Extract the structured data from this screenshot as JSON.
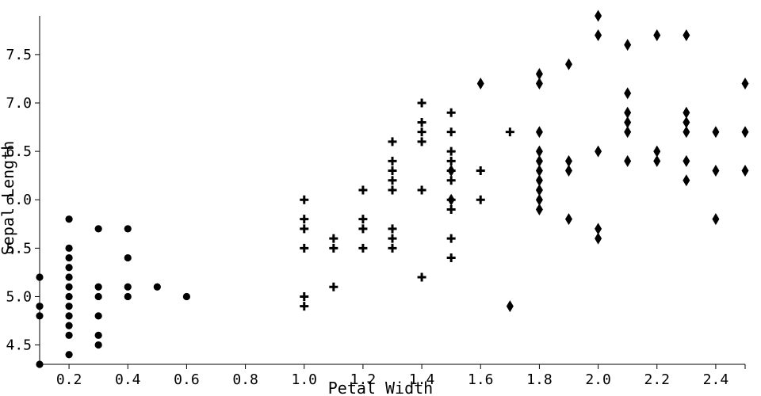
{
  "chart_data": {
    "type": "scatter",
    "xlabel": "Petal Width",
    "ylabel": "Sepal Length",
    "xlim": [
      0.1,
      2.5
    ],
    "ylim": [
      4.3,
      7.9
    ],
    "xticks": [
      0.2,
      0.4,
      0.6,
      0.8,
      1.0,
      1.2,
      1.4,
      1.6,
      1.8,
      2.0,
      2.2,
      2.4
    ],
    "xtick_labels": [
      "0.2",
      "0.4",
      "0.6",
      "0.8",
      "1.0",
      "1.2",
      "1.4",
      "1.6",
      "1.8",
      "2.0",
      "2.2",
      "2.4"
    ],
    "yticks": [
      4.5,
      5.0,
      5.5,
      6.0,
      6.5,
      7.0,
      7.5
    ],
    "ytick_labels": [
      "4.5",
      "5.0",
      "5.5",
      "6.0",
      "6.5",
      "7.0",
      "7.5"
    ],
    "grid": false,
    "marker_color": "#000000",
    "series": [
      {
        "marker": "circle",
        "points": [
          [
            0.1,
            5.2
          ],
          [
            0.1,
            4.9
          ],
          [
            0.1,
            4.8
          ],
          [
            0.1,
            4.3
          ],
          [
            0.2,
            5.8
          ],
          [
            0.2,
            5.5
          ],
          [
            0.2,
            5.4
          ],
          [
            0.2,
            5.3
          ],
          [
            0.2,
            5.2
          ],
          [
            0.2,
            5.1
          ],
          [
            0.2,
            5.0
          ],
          [
            0.2,
            4.9
          ],
          [
            0.2,
            4.8
          ],
          [
            0.2,
            4.7
          ],
          [
            0.2,
            4.6
          ],
          [
            0.2,
            4.4
          ],
          [
            0.3,
            5.7
          ],
          [
            0.3,
            5.1
          ],
          [
            0.3,
            5.0
          ],
          [
            0.3,
            4.8
          ],
          [
            0.3,
            4.6
          ],
          [
            0.3,
            4.5
          ],
          [
            0.4,
            5.7
          ],
          [
            0.4,
            5.4
          ],
          [
            0.4,
            5.1
          ],
          [
            0.4,
            5.0
          ],
          [
            0.5,
            5.1
          ],
          [
            0.6,
            5.0
          ]
        ]
      },
      {
        "marker": "plus",
        "points": [
          [
            1.0,
            6.0
          ],
          [
            1.0,
            5.8
          ],
          [
            1.0,
            5.7
          ],
          [
            1.0,
            5.5
          ],
          [
            1.0,
            5.0
          ],
          [
            1.0,
            4.9
          ],
          [
            1.1,
            5.6
          ],
          [
            1.1,
            5.5
          ],
          [
            1.1,
            5.1
          ],
          [
            1.2,
            6.1
          ],
          [
            1.2,
            5.8
          ],
          [
            1.2,
            5.7
          ],
          [
            1.2,
            5.5
          ],
          [
            1.3,
            6.6
          ],
          [
            1.3,
            6.4
          ],
          [
            1.3,
            6.3
          ],
          [
            1.3,
            6.2
          ],
          [
            1.3,
            6.1
          ],
          [
            1.3,
            5.7
          ],
          [
            1.3,
            5.6
          ],
          [
            1.3,
            5.5
          ],
          [
            1.4,
            7.0
          ],
          [
            1.4,
            6.8
          ],
          [
            1.4,
            6.7
          ],
          [
            1.4,
            6.6
          ],
          [
            1.4,
            6.1
          ],
          [
            1.4,
            5.2
          ],
          [
            1.5,
            6.9
          ],
          [
            1.5,
            6.7
          ],
          [
            1.5,
            6.5
          ],
          [
            1.5,
            6.4
          ],
          [
            1.5,
            6.3
          ],
          [
            1.5,
            6.2
          ],
          [
            1.5,
            6.0
          ],
          [
            1.5,
            5.9
          ],
          [
            1.5,
            5.6
          ],
          [
            1.5,
            5.4
          ],
          [
            1.6,
            6.3
          ],
          [
            1.6,
            6.0
          ],
          [
            1.7,
            6.7
          ]
        ]
      },
      {
        "marker": "diamond",
        "points": [
          [
            1.5,
            6.3
          ],
          [
            1.5,
            6.0
          ],
          [
            1.6,
            7.2
          ],
          [
            1.7,
            4.9
          ],
          [
            1.8,
            7.3
          ],
          [
            1.8,
            7.2
          ],
          [
            1.8,
            6.7
          ],
          [
            1.8,
            6.5
          ],
          [
            1.8,
            6.4
          ],
          [
            1.8,
            6.3
          ],
          [
            1.8,
            6.2
          ],
          [
            1.8,
            6.1
          ],
          [
            1.8,
            6.0
          ],
          [
            1.8,
            5.9
          ],
          [
            1.9,
            7.4
          ],
          [
            1.9,
            6.4
          ],
          [
            1.9,
            6.3
          ],
          [
            1.9,
            5.8
          ],
          [
            2.0,
            7.9
          ],
          [
            2.0,
            7.7
          ],
          [
            2.0,
            6.5
          ],
          [
            2.0,
            5.7
          ],
          [
            2.0,
            5.6
          ],
          [
            2.1,
            7.6
          ],
          [
            2.1,
            7.1
          ],
          [
            2.1,
            6.9
          ],
          [
            2.1,
            6.8
          ],
          [
            2.1,
            6.7
          ],
          [
            2.1,
            6.4
          ],
          [
            2.2,
            7.7
          ],
          [
            2.2,
            6.5
          ],
          [
            2.2,
            6.4
          ],
          [
            2.3,
            7.7
          ],
          [
            2.3,
            6.9
          ],
          [
            2.3,
            6.8
          ],
          [
            2.3,
            6.7
          ],
          [
            2.3,
            6.4
          ],
          [
            2.3,
            6.2
          ],
          [
            2.4,
            6.7
          ],
          [
            2.4,
            6.3
          ],
          [
            2.4,
            5.8
          ],
          [
            2.5,
            7.2
          ],
          [
            2.5,
            6.7
          ],
          [
            2.5,
            6.3
          ]
        ]
      }
    ]
  }
}
